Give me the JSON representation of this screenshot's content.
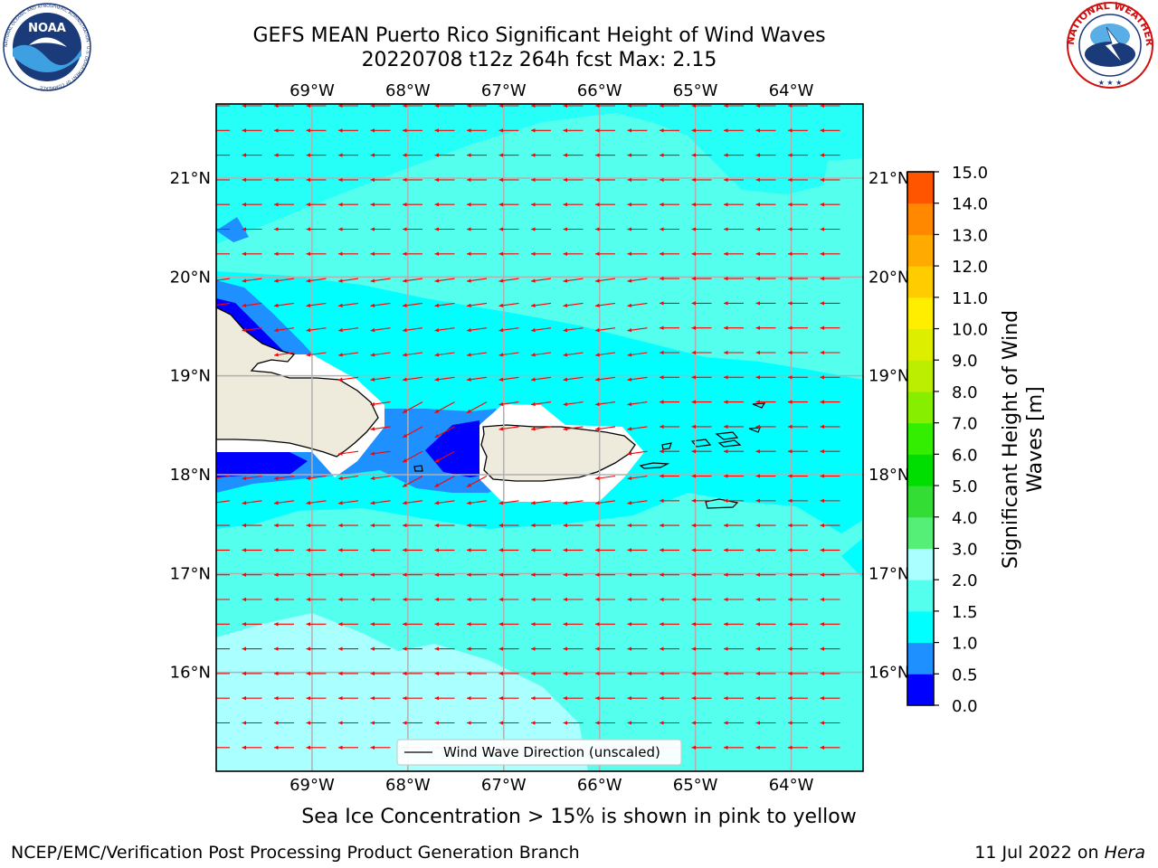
{
  "title_line1": "GEFS MEAN Puerto Rico Significant Height of Wind Waves",
  "title_line2": "20220708 t12z 264h fcst   Max: 2.15",
  "logos": {
    "noaa_text": "NOAA",
    "noaa_ring": "NATIONAL OCEANIC AND ATMOSPHERIC ADMINISTRATION · U.S. DEPARTMENT OF COMMERCE",
    "nws_ring": "NATIONAL WEATHER SERVICE"
  },
  "map": {
    "lon_range": [
      -70.0,
      -63.25
    ],
    "lat_range": [
      15.0,
      21.75
    ],
    "lon_ticks": [
      "69°W",
      "68°W",
      "67°W",
      "66°W",
      "65°W",
      "64°W"
    ],
    "lon_values": [
      -69,
      -68,
      -67,
      -66,
      -65,
      -64
    ],
    "lat_ticks": [
      "21°N",
      "20°N",
      "19°N",
      "18°N",
      "17°N",
      "16°N"
    ],
    "lat_values": [
      21,
      20,
      19,
      18,
      17,
      16
    ],
    "legend_label": "Wind Wave Direction (unscaled)",
    "arrow_color": "#ff0000",
    "land_color": "#efebdc"
  },
  "colorbar": {
    "label": "Significant Height of Wind Waves [m]",
    "ticks": [
      "15.0",
      "14.0",
      "13.0",
      "12.0",
      "11.0",
      "10.0",
      "9.0",
      "8.0",
      "7.0",
      "6.0",
      "5.0",
      "4.0",
      "3.0",
      "2.0",
      "1.5",
      "1.0",
      "0.5",
      "0.0"
    ],
    "colors": [
      "#0000ff",
      "#1e90ff",
      "#00ffff",
      "#55ffee",
      "#aaffff",
      "#55ee77",
      "#33dd33",
      "#00dd00",
      "#33ee00",
      "#88ee00",
      "#bbee00",
      "#ddee00",
      "#ffee00",
      "#ffcc00",
      "#ffaa00",
      "#ff8800",
      "#ff5500",
      "#ff2200",
      "#ff0000"
    ]
  },
  "sea_ice_note": "Sea Ice Concentration > 15% is shown in pink to yellow",
  "footer_left": "NCEP/EMC/Verification Post Processing Product Generation Branch",
  "footer_date": "11 Jul 2022 on ",
  "footer_machine": "Hera"
}
